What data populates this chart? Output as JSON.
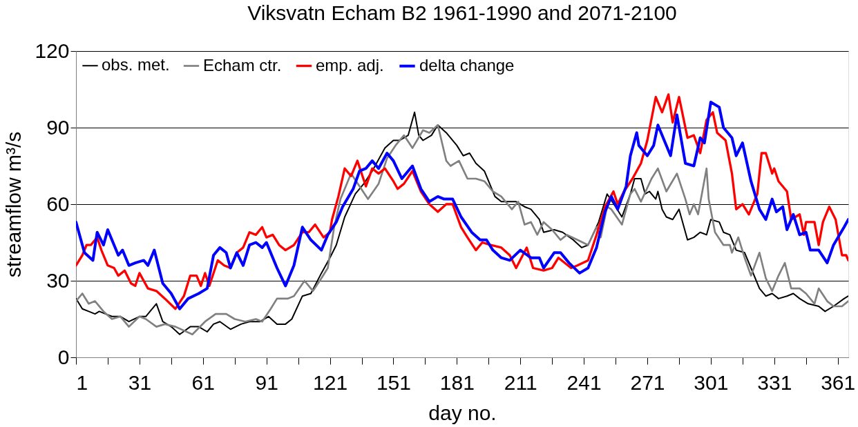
{
  "chart_data": {
    "type": "line",
    "title": "Viksvatn   Echam B2   1961-1990 and 2071-2100",
    "xlabel": "day no.",
    "ylabel": "streamflow m³/s",
    "xlim": [
      1,
      366
    ],
    "ylim": [
      0,
      120
    ],
    "yticks": [
      0,
      30,
      60,
      90,
      120
    ],
    "xticks": [
      1,
      {
        "value": 16,
        "label": null
      },
      31,
      {
        "value": 46,
        "label": null
      },
      61,
      {
        "value": 76,
        "label": null
      },
      91,
      {
        "value": 106,
        "label": null
      },
      121,
      {
        "value": 136,
        "label": null
      },
      151,
      {
        "value": 166,
        "label": null
      },
      181,
      {
        "value": 196,
        "label": null
      },
      211,
      {
        "value": 226,
        "label": null
      },
      241,
      {
        "value": 256,
        "label": null
      },
      271,
      {
        "value": 286,
        "label": null
      },
      301,
      {
        "value": 316,
        "label": null
      },
      331,
      {
        "value": 346,
        "label": null
      },
      361
    ],
    "grid": "y",
    "legend": "top left",
    "line_style": "solid",
    "marker": "none",
    "series": [
      {
        "name": "obs. met.",
        "color": "#000000",
        "x": [
          1,
          4,
          7,
          10,
          12,
          15,
          18,
          22,
          26,
          31,
          34,
          36,
          39,
          42,
          46,
          50,
          55,
          59,
          63,
          66,
          69,
          74,
          79,
          83,
          88,
          92,
          96,
          100,
          103,
          108,
          112,
          117,
          121,
          124,
          128,
          133,
          137,
          141,
          147,
          151,
          154,
          158,
          161,
          163,
          165,
          169,
          172,
          176,
          181,
          184,
          187,
          190,
          194,
          196,
          199,
          202,
          209,
          213,
          216,
          220,
          222,
          227,
          231,
          236,
          240,
          243,
          248,
          252,
          256,
          259,
          263,
          265,
          268,
          270,
          272,
          275,
          276,
          278,
          280,
          283,
          286,
          290,
          293,
          296,
          299,
          301,
          305,
          307,
          310,
          313,
          317,
          320,
          324,
          327,
          330,
          333,
          337,
          340,
          343,
          347,
          352,
          355,
          359,
          364,
          366
        ],
        "values": [
          23,
          19,
          18,
          17,
          18,
          17,
          16,
          16,
          14,
          16,
          16,
          18,
          21,
          14,
          12,
          9,
          12,
          12,
          10,
          13,
          14,
          11,
          13,
          14,
          14,
          16,
          13,
          13,
          15,
          24,
          25,
          33,
          39,
          44,
          55,
          64,
          68,
          73,
          82,
          85,
          85,
          87,
          96,
          87,
          85,
          87,
          91,
          88,
          83,
          79,
          80,
          76,
          73,
          69,
          63,
          61,
          61,
          59,
          58,
          54,
          49,
          50,
          49,
          46,
          43,
          44,
          53,
          64,
          59,
          55,
          64,
          70,
          70,
          64,
          65,
          62,
          65,
          58,
          55,
          54,
          58,
          46,
          47,
          49,
          48,
          54,
          53,
          49,
          48,
          42,
          41,
          35,
          27,
          24,
          25,
          23,
          24,
          25,
          23,
          21,
          20,
          18,
          20,
          23,
          24
        ]
      },
      {
        "name": "Echam ctr.",
        "color": "#808080",
        "x": [
          1,
          4,
          7,
          10,
          14,
          18,
          22,
          26,
          31,
          34,
          39,
          43,
          48,
          56,
          62,
          67,
          72,
          76,
          81,
          86,
          89,
          93,
          96,
          101,
          104,
          109,
          113,
          117,
          120,
          123,
          126,
          131,
          135,
          139,
          144,
          148,
          152,
          156,
          160,
          165,
          168,
          172,
          176,
          178,
          182,
          186,
          190,
          194,
          198,
          202,
          207,
          210,
          213,
          216,
          219,
          222,
          226,
          230,
          233,
          238,
          243,
          247,
          249,
          252,
          254,
          259,
          263,
          265,
          268,
          273,
          276,
          280,
          285,
          289,
          291,
          293,
          295,
          299,
          300,
          303,
          307,
          310,
          311,
          314,
          317,
          320,
          324,
          327,
          330,
          333,
          336,
          339,
          343,
          346,
          350,
          352,
          356,
          359,
          363,
          366
        ],
        "values": [
          22,
          25,
          21,
          22,
          18,
          15,
          16,
          12,
          16,
          15,
          12,
          13,
          12,
          9,
          14,
          17,
          17,
          15,
          14,
          15,
          14,
          19,
          23,
          23,
          24,
          30,
          26,
          31,
          35,
          51,
          62,
          72,
          67,
          62,
          68,
          78,
          83,
          87,
          82,
          89,
          88,
          91,
          77,
          75,
          77,
          70,
          70,
          69,
          65,
          63,
          58,
          61,
          52,
          53,
          48,
          53,
          50,
          46,
          48,
          46,
          44,
          51,
          47,
          59,
          58,
          52,
          64,
          66,
          61,
          70,
          74,
          65,
          72,
          62,
          56,
          60,
          56,
          74,
          62,
          49,
          44,
          44,
          41,
          47,
          39,
          32,
          41,
          31,
          26,
          32,
          37,
          27,
          27,
          25,
          21,
          27,
          22,
          20,
          20,
          22
        ]
      },
      {
        "name": "emp. adj.",
        "color": "#ff0000",
        "x": [
          1,
          4,
          6,
          8,
          11,
          13,
          16,
          19,
          21,
          24,
          27,
          29,
          31,
          35,
          39,
          43,
          48,
          52,
          55,
          58,
          60,
          62,
          64,
          68,
          71,
          74,
          77,
          80,
          83,
          86,
          89,
          91,
          94,
          97,
          100,
          104,
          108,
          111,
          114,
          118,
          121,
          122,
          125,
          128,
          131,
          134,
          138,
          141,
          144,
          147,
          151,
          153,
          156,
          160,
          164,
          168,
          172,
          176,
          179,
          183,
          186,
          190,
          193,
          197,
          202,
          206,
          209,
          214,
          217,
          222,
          226,
          229,
          235,
          238,
          243,
          247,
          251,
          255,
          257,
          260,
          264,
          268,
          271,
          275,
          278,
          281,
          283,
          286,
          290,
          293,
          296,
          299,
          302,
          304,
          308,
          311,
          313,
          316,
          319,
          323,
          325,
          327,
          330,
          331,
          333,
          337,
          339,
          343,
          345,
          346,
          350,
          352,
          354,
          357,
          360,
          363,
          365,
          366
        ],
        "values": [
          36,
          40,
          44,
          44,
          47,
          42,
          36,
          35,
          32,
          34,
          29,
          28,
          33,
          27,
          26,
          23,
          19,
          24,
          32,
          32,
          28,
          33,
          28,
          38,
          36,
          35,
          41,
          43,
          49,
          48,
          51,
          47,
          48,
          44,
          42,
          44,
          49,
          49,
          52,
          47,
          49,
          54,
          63,
          74,
          71,
          77,
          67,
          74,
          72,
          74,
          69,
          66,
          68,
          73,
          65,
          60,
          57,
          60,
          60,
          51,
          47,
          42,
          45,
          44,
          43,
          40,
          35,
          43,
          35,
          34,
          35,
          39,
          35,
          36,
          38,
          48,
          59,
          65,
          60,
          65,
          70,
          76,
          85,
          102,
          96,
          103,
          92,
          102,
          86,
          87,
          80,
          93,
          96,
          88,
          85,
          72,
          58,
          60,
          56,
          64,
          80,
          80,
          72,
          74,
          69,
          65,
          54,
          56,
          48,
          53,
          53,
          44,
          53,
          59,
          54,
          40,
          40,
          38
        ]
      },
      {
        "name": "delta change",
        "color": "#0000ff",
        "x": [
          1,
          5,
          9,
          11,
          14,
          16,
          21,
          23,
          26,
          29,
          33,
          35,
          38,
          42,
          46,
          50,
          54,
          59,
          63,
          66,
          69,
          72,
          74,
          77,
          80,
          83,
          86,
          89,
          91,
          96,
          100,
          104,
          108,
          112,
          117,
          120,
          124,
          127,
          132,
          135,
          138,
          141,
          144,
          148,
          151,
          155,
          160,
          164,
          168,
          172,
          175,
          179,
          183,
          188,
          192,
          195,
          198,
          202,
          206,
          211,
          216,
          220,
          222,
          227,
          230,
          234,
          239,
          243,
          247,
          251,
          254,
          257,
          261,
          263,
          266,
          267,
          271,
          274,
          276,
          279,
          282,
          285,
          289,
          293,
          296,
          298,
          301,
          305,
          307,
          311,
          313,
          316,
          320,
          324,
          327,
          330,
          332,
          335,
          337,
          340,
          343,
          346,
          348,
          352,
          356,
          359,
          364,
          366
        ],
        "values": [
          53,
          41,
          38,
          49,
          44,
          50,
          40,
          42,
          36,
          37,
          38,
          36,
          42,
          29,
          25,
          19,
          23,
          25,
          27,
          40,
          43,
          41,
          35,
          41,
          36,
          44,
          45,
          43,
          45,
          35,
          28,
          36,
          51,
          46,
          42,
          48,
          53,
          59,
          66,
          73,
          74,
          77,
          74,
          80,
          77,
          70,
          75,
          66,
          61,
          63,
          62,
          62,
          55,
          49,
          46,
          46,
          42,
          39,
          38,
          42,
          39,
          39,
          35,
          41,
          41,
          37,
          33,
          35,
          43,
          57,
          63,
          58,
          67,
          79,
          88,
          83,
          79,
          83,
          91,
          85,
          79,
          95,
          76,
          75,
          86,
          84,
          100,
          98,
          90,
          86,
          79,
          84,
          69,
          58,
          54,
          62,
          57,
          59,
          50,
          56,
          48,
          49,
          42,
          42,
          37,
          44,
          51,
          54
        ]
      }
    ]
  }
}
